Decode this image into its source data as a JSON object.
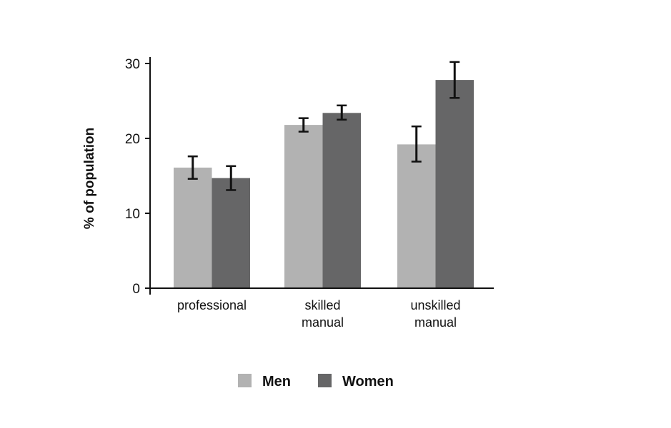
{
  "chart_data": {
    "type": "bar",
    "title": "",
    "xlabel": "",
    "ylabel": "% of population",
    "ylim": [
      0,
      30
    ],
    "yticks": [
      0,
      10,
      20,
      30
    ],
    "ytick_labels": [
      "0",
      "10",
      "20",
      "30"
    ],
    "categories": [
      [
        "professional"
      ],
      [
        "skilled",
        "manual"
      ],
      [
        "unskilled",
        "manual"
      ]
    ],
    "series": [
      {
        "name": "Men",
        "color": "#b2b2b2",
        "values": [
          16.1,
          21.8,
          19.2
        ],
        "error_low": [
          14.6,
          20.9,
          16.9
        ],
        "error_high": [
          17.6,
          22.7,
          21.6
        ]
      },
      {
        "name": "Women",
        "color": "#666667",
        "values": [
          14.7,
          23.4,
          27.8
        ],
        "error_low": [
          13.1,
          22.5,
          25.4
        ],
        "error_high": [
          16.3,
          24.4,
          30.2
        ]
      }
    ],
    "grid": false,
    "legend_position": "bottom"
  }
}
